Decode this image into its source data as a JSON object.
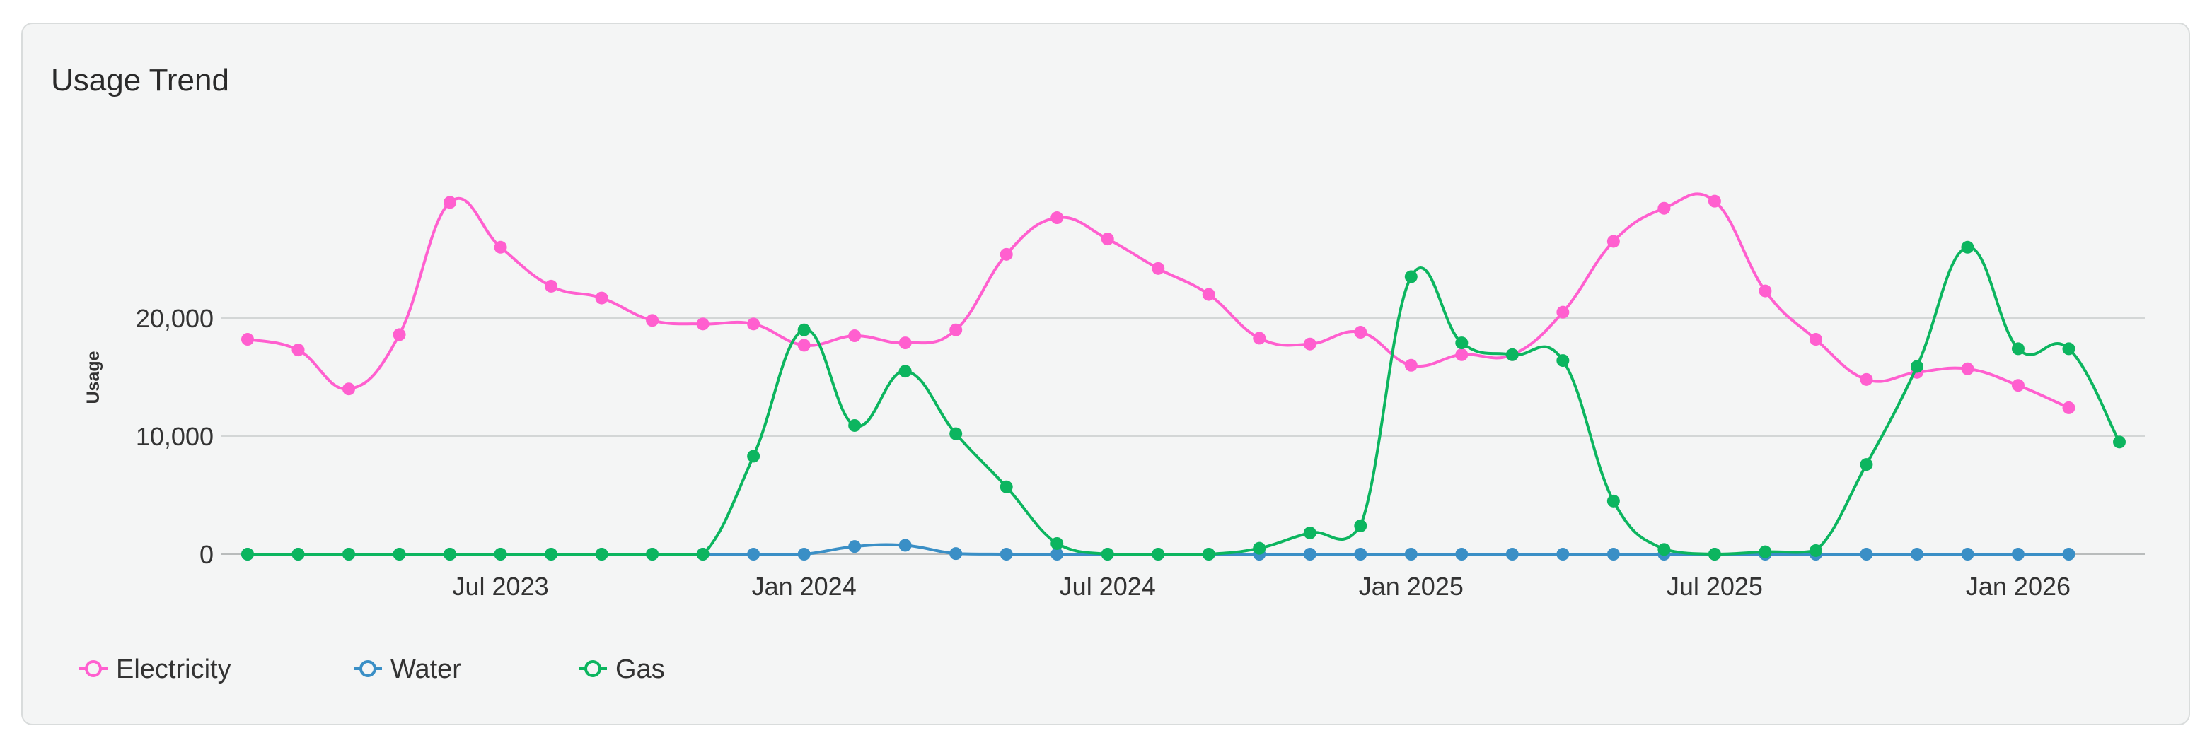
{
  "card": {
    "title": "Usage Trend"
  },
  "chart_data": {
    "type": "line",
    "title": "Usage Trend",
    "xlabel": "",
    "ylabel": "Usage",
    "ylim": [
      0,
      30000
    ],
    "y_ticks": [
      0,
      10000,
      20000
    ],
    "y_tick_labels": [
      "0",
      "10,000",
      "20,000"
    ],
    "x_ticks": [
      "2023-07",
      "2024-01",
      "2024-07",
      "2025-01",
      "2025-07",
      "2026-01"
    ],
    "x_tick_labels": [
      "Jul 2023",
      "Jan 2024",
      "Jul 2024",
      "Jan 2025",
      "Jul 2025",
      "Jan 2026"
    ],
    "grid": "horizontal",
    "legend_position": "bottom-left",
    "x": [
      "2023-02",
      "2023-03",
      "2023-04",
      "2023-05",
      "2023-06",
      "2023-07",
      "2023-08",
      "2023-09",
      "2023-10",
      "2023-11",
      "2023-12",
      "2024-01",
      "2024-02",
      "2024-03",
      "2024-04",
      "2024-05",
      "2024-06",
      "2024-07",
      "2024-08",
      "2024-09",
      "2024-10",
      "2024-11",
      "2024-12",
      "2025-01",
      "2025-02",
      "2025-03",
      "2025-04",
      "2025-05",
      "2025-06",
      "2025-07",
      "2025-08",
      "2025-09",
      "2025-10",
      "2025-11",
      "2025-12",
      "2026-01",
      "2026-02",
      "2026-03"
    ],
    "series": [
      {
        "name": "Electricity",
        "color": "#ff5fcf",
        "values": [
          18200,
          17300,
          14000,
          18600,
          29800,
          26000,
          22700,
          21700,
          19800,
          19500,
          19500,
          17700,
          18500,
          17900,
          19000,
          25400,
          28500,
          26700,
          24200,
          22000,
          18300,
          17800,
          18800,
          16000,
          16900,
          16900,
          20500,
          26500,
          29300,
          29900,
          22300,
          18200,
          14800,
          15400,
          15700,
          14300,
          12400,
          null
        ]
      },
      {
        "name": "Water",
        "color": "#3a8fc6",
        "values": [
          0,
          0,
          0,
          0,
          0,
          0,
          0,
          0,
          0,
          0,
          0,
          0,
          650,
          750,
          50,
          0,
          0,
          0,
          0,
          0,
          0,
          0,
          0,
          0,
          0,
          0,
          0,
          0,
          0,
          0,
          0,
          0,
          0,
          0,
          0,
          0,
          0,
          null
        ]
      },
      {
        "name": "Gas",
        "color": "#0cb55f",
        "values": [
          0,
          0,
          0,
          0,
          0,
          0,
          0,
          0,
          0,
          0,
          8300,
          19000,
          10900,
          15500,
          10200,
          5700,
          900,
          0,
          0,
          0,
          500,
          1800,
          2400,
          23500,
          17900,
          16900,
          16400,
          4500,
          400,
          0,
          200,
          300,
          7600,
          15900,
          26000,
          17400,
          17400,
          9500
        ]
      }
    ]
  }
}
